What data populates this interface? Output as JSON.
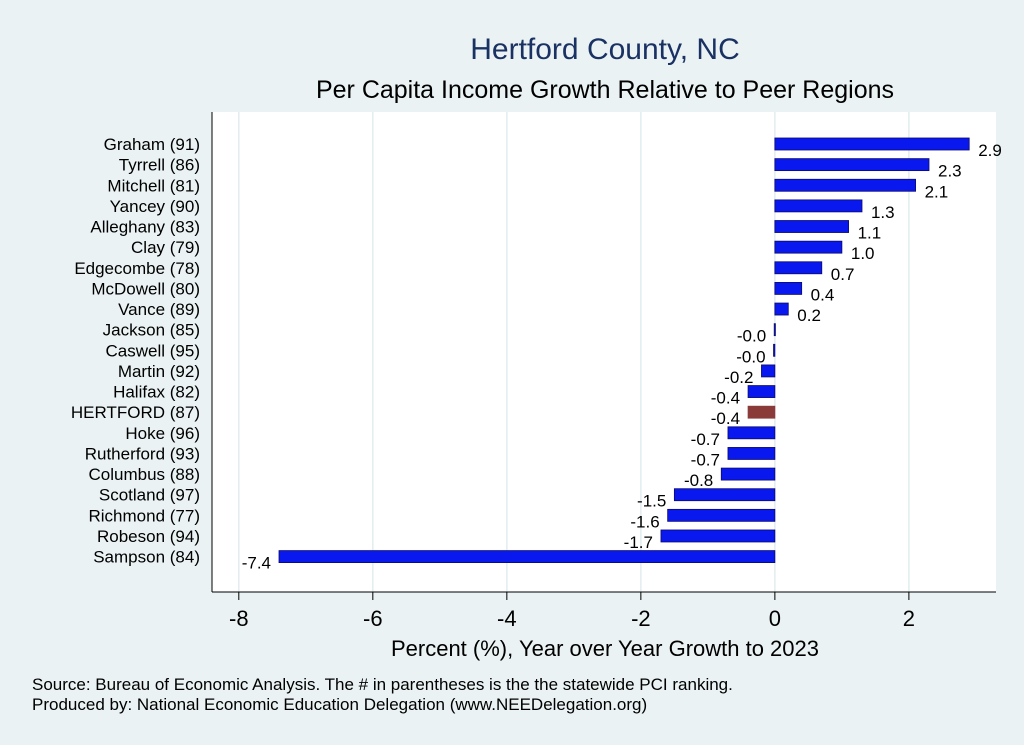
{
  "chart_data": {
    "type": "bar",
    "orientation": "horizontal",
    "title": "Hertford County, NC",
    "subtitle": "Per Capita Income Growth Relative to Peer Regions",
    "xlabel": "Percent (%), Year over Year Growth to 2023",
    "xlim": [
      -8.4,
      3.3
    ],
    "xticks": [
      -8,
      -6,
      -4,
      -2,
      0,
      2
    ],
    "grid": true,
    "categories": [
      "Graham (91)",
      "Tyrrell (86)",
      "Mitchell (81)",
      "Yancey (90)",
      "Alleghany (83)",
      "Clay (79)",
      "Edgecombe (78)",
      "McDowell (80)",
      "Vance (89)",
      "Jackson (85)",
      "Caswell (95)",
      "Martin (92)",
      "Halifax (82)",
      "HERTFORD (87)",
      "Hoke (96)",
      "Rutherford (93)",
      "Columbus (88)",
      "Scotland (97)",
      "Richmond (77)",
      "Robeson (94)",
      "Sampson (84)"
    ],
    "values": [
      2.9,
      2.3,
      2.1,
      1.3,
      1.1,
      1.0,
      0.7,
      0.4,
      0.2,
      -0.01,
      -0.02,
      -0.2,
      -0.4,
      -0.4,
      -0.7,
      -0.7,
      -0.8,
      -1.5,
      -1.6,
      -1.7,
      -7.4
    ],
    "value_labels": [
      "2.9",
      "2.3",
      "2.1",
      "1.3",
      "1.1",
      "1.0",
      "0.7",
      "0.4",
      "0.2",
      "-0.0",
      "-0.0",
      "-0.2",
      "-0.4",
      "-0.4",
      "-0.7",
      "-0.7",
      "-0.8",
      "-1.5",
      "-1.6",
      "-1.7",
      "-7.4"
    ],
    "highlight_category": "HERTFORD (87)",
    "colors": {
      "bar": "#0a18f0",
      "bar_edge": "#0a0a6a",
      "highlight": "#8b3a3a",
      "plot_bg": "#ffffff",
      "page_bg": "#eaf2f3",
      "grid": "#e3ecee",
      "title": "#1a3263"
    }
  },
  "notes": {
    "source": "Source: Bureau of Economic Analysis. The # in parentheses is the the statewide PCI ranking.",
    "produced_by": "Produced by: National Economic Education Delegation (www.NEEDelegation.org)"
  }
}
